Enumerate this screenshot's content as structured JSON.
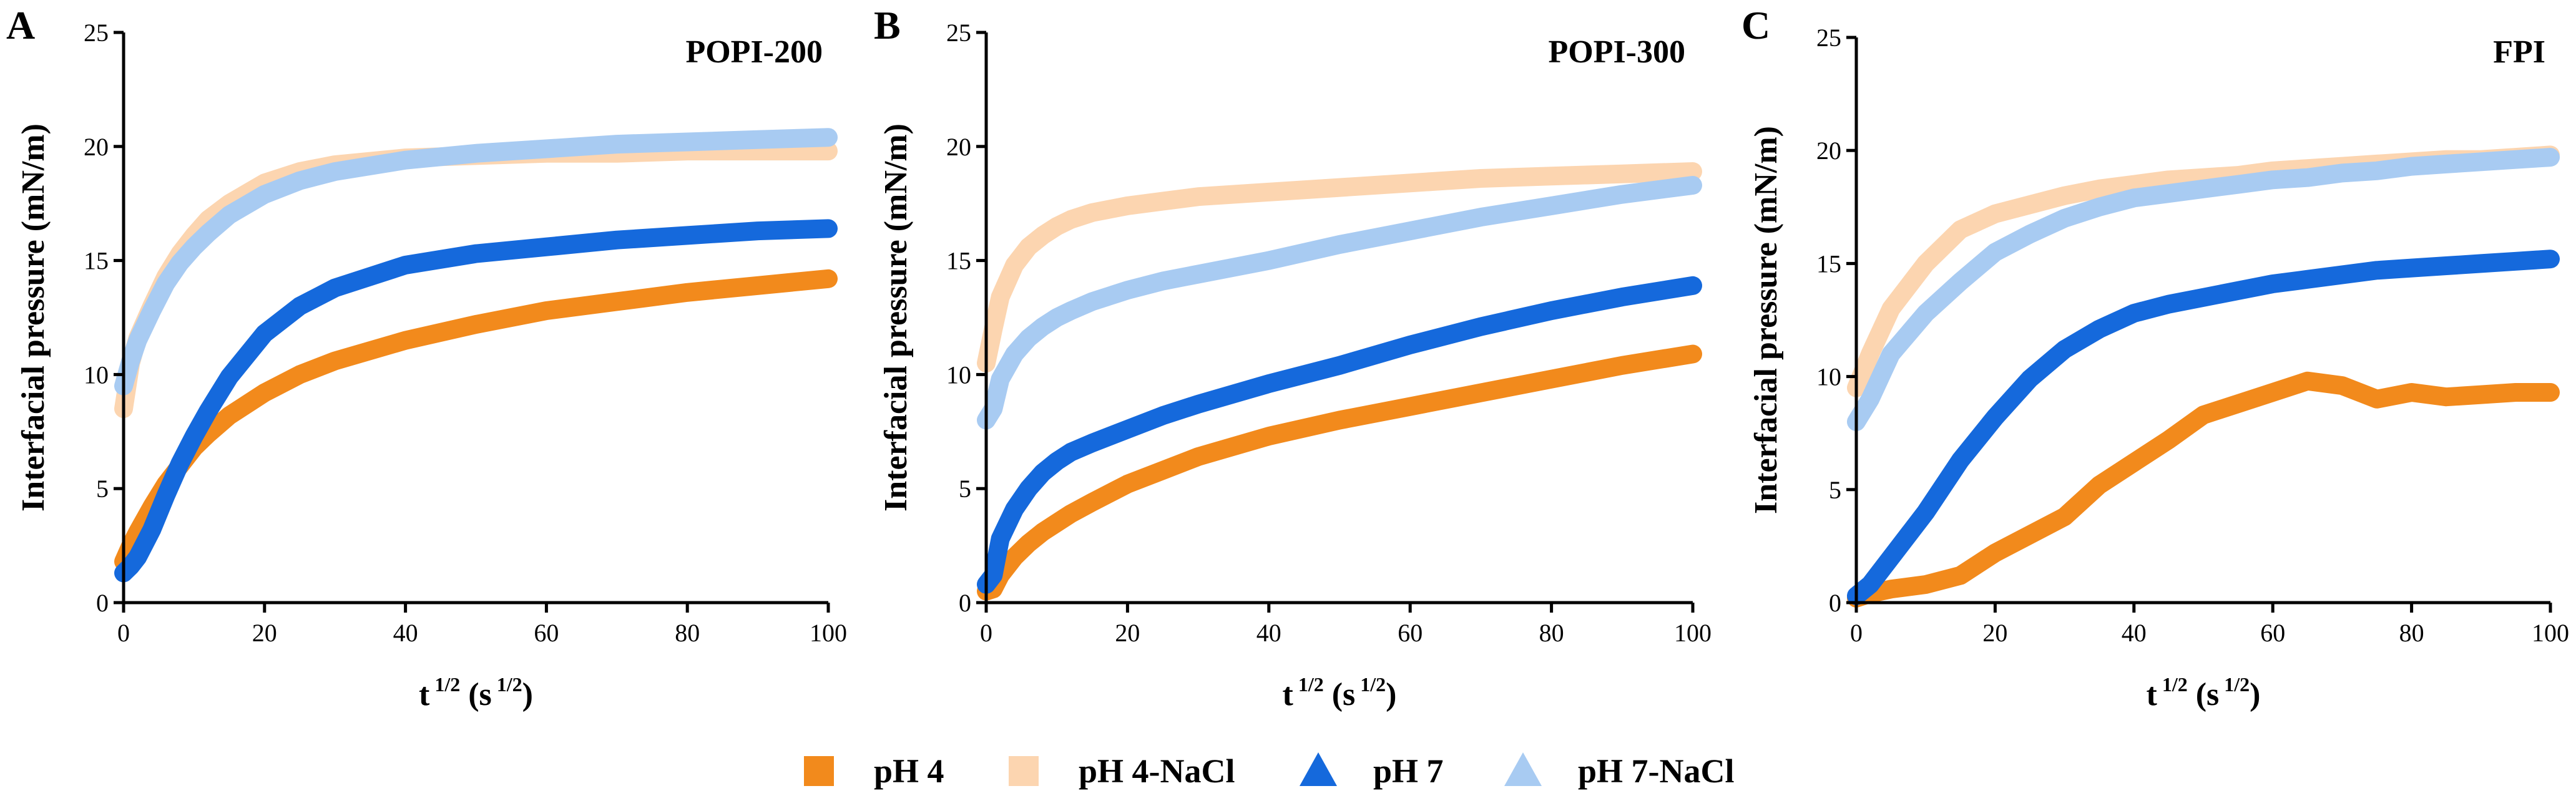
{
  "chart_data": [
    {
      "type": "line",
      "panel": "A",
      "title": "POPI-200",
      "ylabel": "Interfacial pressure (mN/m)",
      "xlabel": {
        "base": "t",
        "sup1": "1/2",
        "unit_open": "(s",
        "sup2": "1/2",
        "unit_close": ")"
      },
      "xlim": [
        0,
        100
      ],
      "ylim": [
        0,
        25
      ],
      "xticks": [
        0,
        20,
        40,
        60,
        80,
        100
      ],
      "yticks": [
        0,
        5,
        10,
        15,
        20,
        25
      ],
      "x": [
        0,
        1,
        2,
        4,
        6,
        8,
        10,
        12,
        15,
        20,
        25,
        30,
        40,
        50,
        60,
        70,
        80,
        90,
        100
      ],
      "series": [
        {
          "name": "pH 4",
          "color": "#F28A1C",
          "values": [
            1.8,
            2.5,
            3.1,
            4.2,
            5.2,
            6.0,
            6.8,
            7.4,
            8.2,
            9.2,
            10.0,
            10.6,
            11.5,
            12.2,
            12.8,
            13.2,
            13.6,
            13.9,
            14.2
          ]
        },
        {
          "name": "pH 4-NaCl",
          "color": "#FCD5B0",
          "values": [
            8.5,
            10.5,
            11.6,
            13.0,
            14.3,
            15.3,
            16.1,
            16.8,
            17.5,
            18.4,
            18.9,
            19.2,
            19.5,
            19.6,
            19.7,
            19.7,
            19.8,
            19.8,
            19.8
          ]
        },
        {
          "name": "pH 7",
          "color": "#1569DC",
          "values": [
            1.3,
            1.6,
            2.0,
            3.2,
            4.7,
            6.1,
            7.3,
            8.4,
            9.9,
            11.8,
            13.0,
            13.8,
            14.8,
            15.3,
            15.6,
            15.9,
            16.1,
            16.3,
            16.4
          ]
        },
        {
          "name": "pH 7-NaCl",
          "color": "#A8CBF2",
          "values": [
            9.5,
            10.6,
            11.5,
            12.8,
            14.0,
            14.9,
            15.6,
            16.2,
            17.0,
            17.9,
            18.5,
            18.9,
            19.4,
            19.7,
            19.9,
            20.1,
            20.2,
            20.3,
            20.4
          ]
        }
      ]
    },
    {
      "type": "line",
      "panel": "B",
      "title": "POPI-300",
      "ylabel": "Interfacial pressure (mN/m)",
      "xlabel": {
        "base": "t",
        "sup1": "1/2",
        "unit_open": "(s",
        "sup2": "1/2",
        "unit_close": ")"
      },
      "xlim": [
        0,
        100
      ],
      "ylim": [
        0,
        25
      ],
      "xticks": [
        0,
        20,
        40,
        60,
        80,
        100
      ],
      "yticks": [
        0,
        5,
        10,
        15,
        20,
        25
      ],
      "x": [
        0,
        1,
        2,
        4,
        6,
        8,
        10,
        12,
        15,
        20,
        25,
        30,
        40,
        50,
        60,
        70,
        80,
        90,
        100
      ],
      "series": [
        {
          "name": "pH 4",
          "color": "#F28A1C",
          "values": [
            0.5,
            0.6,
            1.2,
            2.0,
            2.6,
            3.1,
            3.5,
            3.9,
            4.4,
            5.2,
            5.8,
            6.4,
            7.3,
            8.0,
            8.6,
            9.2,
            9.8,
            10.4,
            10.9
          ]
        },
        {
          "name": "pH 4-NaCl",
          "color": "#FCD5B0",
          "values": [
            10.5,
            12.0,
            13.4,
            14.8,
            15.6,
            16.1,
            16.5,
            16.8,
            17.1,
            17.4,
            17.6,
            17.8,
            18.0,
            18.2,
            18.4,
            18.6,
            18.7,
            18.8,
            18.9
          ]
        },
        {
          "name": "pH 7",
          "color": "#1569DC",
          "values": [
            0.8,
            1.2,
            2.8,
            4.1,
            5.0,
            5.7,
            6.2,
            6.6,
            7.0,
            7.6,
            8.2,
            8.7,
            9.6,
            10.4,
            11.3,
            12.1,
            12.8,
            13.4,
            13.9
          ]
        },
        {
          "name": "pH 7-NaCl",
          "color": "#A8CBF2",
          "values": [
            8.0,
            8.5,
            9.8,
            10.9,
            11.6,
            12.1,
            12.5,
            12.8,
            13.2,
            13.7,
            14.1,
            14.4,
            15.0,
            15.7,
            16.3,
            16.9,
            17.4,
            17.9,
            18.3
          ]
        }
      ]
    },
    {
      "type": "line",
      "panel": "C",
      "title": "FPI",
      "ylabel": "Interfacial pressure (mN/m)",
      "xlabel": {
        "base": "t",
        "sup1": "1/2",
        "unit_open": "(s",
        "sup2": "1/2",
        "unit_close": ")"
      },
      "xlim": [
        0,
        100
      ],
      "ylim": [
        0,
        25
      ],
      "xticks": [
        0,
        20,
        40,
        60,
        80,
        100
      ],
      "yticks": [
        0,
        5,
        10,
        15,
        20,
        25
      ],
      "x": [
        0,
        2,
        5,
        10,
        15,
        20,
        25,
        30,
        35,
        40,
        45,
        50,
        55,
        60,
        65,
        70,
        75,
        80,
        85,
        90,
        95,
        100
      ],
      "series": [
        {
          "name": "pH 4",
          "color": "#F28A1C",
          "values": [
            0.2,
            0.4,
            0.6,
            0.8,
            1.2,
            2.2,
            3.0,
            3.8,
            5.2,
            6.2,
            7.2,
            8.3,
            8.8,
            9.3,
            9.8,
            9.6,
            9.0,
            9.3,
            9.1,
            9.2,
            9.3,
            9.3
          ]
        },
        {
          "name": "pH 4-NaCl",
          "color": "#FCD5B0",
          "values": [
            9.5,
            11.0,
            13.0,
            15.0,
            16.5,
            17.2,
            17.6,
            18.0,
            18.3,
            18.5,
            18.7,
            18.8,
            18.9,
            19.1,
            19.2,
            19.3,
            19.4,
            19.5,
            19.6,
            19.6,
            19.7,
            19.8
          ]
        },
        {
          "name": "pH 7",
          "color": "#1569DC",
          "values": [
            0.3,
            0.8,
            2.0,
            4.0,
            6.3,
            8.2,
            9.9,
            11.2,
            12.1,
            12.8,
            13.2,
            13.5,
            13.8,
            14.1,
            14.3,
            14.5,
            14.7,
            14.8,
            14.9,
            15.0,
            15.1,
            15.2
          ]
        },
        {
          "name": "pH 7-NaCl",
          "color": "#A8CBF2",
          "values": [
            8.0,
            9.0,
            11.0,
            12.8,
            14.2,
            15.5,
            16.3,
            17.0,
            17.5,
            17.9,
            18.1,
            18.3,
            18.5,
            18.7,
            18.8,
            19.0,
            19.1,
            19.3,
            19.4,
            19.5,
            19.6,
            19.7
          ]
        }
      ]
    }
  ],
  "legend": {
    "placement": "bottom-center",
    "items": [
      {
        "label": "pH 4",
        "marker": "square",
        "color": "#F28A1C"
      },
      {
        "label": "pH 4-NaCl",
        "marker": "square",
        "color": "#FCD5B0"
      },
      {
        "label": "pH 7",
        "marker": "triangle",
        "color": "#1569DC"
      },
      {
        "label": "pH 7-NaCl",
        "marker": "triangle",
        "color": "#A8CBF2"
      }
    ]
  }
}
